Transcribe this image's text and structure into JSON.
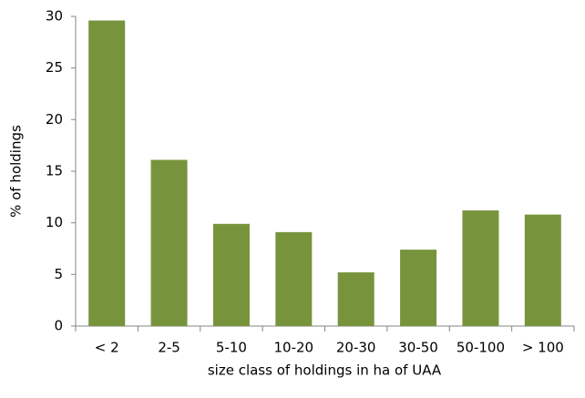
{
  "chart_data": {
    "type": "bar",
    "categories": [
      "< 2",
      "2-5",
      "5-10",
      "10-20",
      "20-30",
      "30-50",
      "50-100",
      "> 100"
    ],
    "values": [
      29.6,
      16.1,
      9.9,
      9.1,
      5.2,
      7.4,
      11.2,
      10.8
    ],
    "color": "#77933c",
    "ylim": [
      0,
      30
    ],
    "yticks": [
      0,
      5,
      10,
      15,
      20,
      25,
      30
    ],
    "grid": false,
    "x_label": "size class of holdings in ha of UAA",
    "y_label": "% of holdings"
  }
}
